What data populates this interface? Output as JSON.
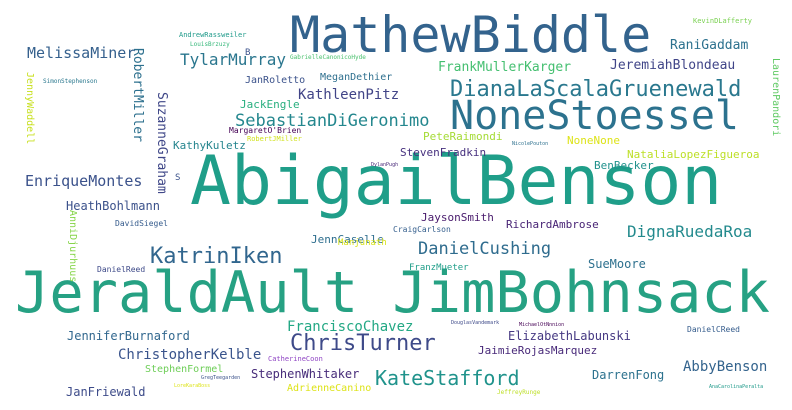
{
  "words": [
    {
      "text": "AbigailBenson",
      "color": "#1f9e89"
    },
    {
      "text": "JeraldAult JimBohnsack",
      "color": "#26a183"
    },
    {
      "text": "MathewBiddle",
      "color": "#33638d"
    },
    {
      "text": "NoneStoessel",
      "color": "#2c728e"
    },
    {
      "text": "DianaLaScalaGruenewald",
      "color": "#2a788e"
    },
    {
      "text": "KatrinIken",
      "color": "#31668e"
    },
    {
      "text": "ChrisTurner",
      "color": "#3e4a89"
    },
    {
      "text": "KateStafford",
      "color": "#20938c"
    },
    {
      "text": "SebastianDiGeronimo",
      "color": "#24878e"
    },
    {
      "text": "DanielCushing",
      "color": "#2f6c8e"
    },
    {
      "text": "DignaRuedaRoa",
      "color": "#238a8d"
    },
    {
      "text": "EnriqueMontes",
      "color": "#3b528b"
    },
    {
      "text": "TylarMurray",
      "color": "#2a768e"
    },
    {
      "text": "MelissaMiner",
      "color": "#35608d"
    },
    {
      "text": "KathleenPitz",
      "color": "#414487"
    },
    {
      "text": "FranciscoChavez",
      "color": "#22a884"
    },
    {
      "text": "ChristopherKelble",
      "color": "#3a548c"
    },
    {
      "text": "AbbyBenson",
      "color": "#33638d"
    },
    {
      "text": "RaniGaddam",
      "color": "#2c718e"
    },
    {
      "text": "JeremiahBlondeau",
      "color": "#404588"
    },
    {
      "text": "FrankMullerKarger",
      "color": "#44bf70"
    },
    {
      "text": "HeathBohlmann",
      "color": "#3b518b"
    },
    {
      "text": "RobertMiller",
      "color": "#2d708e"
    },
    {
      "text": "SuzanneGraham",
      "color": "#3f4788"
    },
    {
      "text": "JenniferBurnaford",
      "color": "#31678e"
    },
    {
      "text": "ElizabethLabunski",
      "color": "#453882"
    },
    {
      "text": "StephenWhitaker",
      "color": "#472c7a"
    },
    {
      "text": "JanFriewald",
      "color": "#3e4c8a"
    },
    {
      "text": "DarrenFong",
      "color": "#2c728e"
    },
    {
      "text": "SueMoore",
      "color": "#2d708e"
    },
    {
      "text": "JaimieRojasMarquez",
      "color": "#482979"
    },
    {
      "text": "StevenFradkin",
      "color": "#46307e"
    },
    {
      "text": "JaysonSmith",
      "color": "#481a6c"
    },
    {
      "text": "RichardAmbrose",
      "color": "#482475"
    },
    {
      "text": "JennCaselle",
      "color": "#2e6e8e"
    },
    {
      "text": "NataliaLopezFigueroa",
      "color": "#bddf26"
    },
    {
      "text": "BenBecker",
      "color": "#21918c"
    },
    {
      "text": "NoneNone",
      "color": "#dde318"
    },
    {
      "text": "PeteRaimondi",
      "color": "#a5db36"
    },
    {
      "text": "StephenFormel",
      "color": "#6ece58"
    },
    {
      "text": "AdrienneCanino",
      "color": "#dde318"
    },
    {
      "text": "KathyKuletz",
      "color": "#25858e"
    },
    {
      "text": "JackEngle",
      "color": "#29af7f"
    },
    {
      "text": "MeganDethier",
      "color": "#2e6f8e"
    },
    {
      "text": "JanRoletto",
      "color": "#3b528b"
    },
    {
      "text": "JennyWaddell",
      "color": "#c8e020"
    },
    {
      "text": "LaurenPandori",
      "color": "#5ec962"
    },
    {
      "text": "AnniDjurhuus",
      "color": "#86d549"
    },
    {
      "text": "FranzMueter",
      "color": "#1f9e89"
    },
    {
      "text": "Manjunath",
      "color": "#d8e219"
    },
    {
      "text": "CraigCarlson",
      "color": "#355f8d"
    },
    {
      "text": "DavidSiegel",
      "color": "#365c8d"
    },
    {
      "text": "DanielReed",
      "color": "#3e4a89"
    },
    {
      "text": "DanielCReed",
      "color": "#365d8d"
    },
    {
      "text": "MargaretO'Brien",
      "color": "#440154"
    },
    {
      "text": "RobertJMiller",
      "color": "#d0e11c"
    },
    {
      "text": "CatherineCoon",
      "color": "#8f44c4"
    },
    {
      "text": "AndrewRassweiler",
      "color": "#1f9a8a"
    },
    {
      "text": "LouisBrzuzy",
      "color": "#35b779"
    },
    {
      "text": "GabrielleCanonicoHyde",
      "color": "#4ac16d"
    },
    {
      "text": "SimonStephenson",
      "color": "#2a788e"
    },
    {
      "text": "KevinDLafferty",
      "color": "#7ad151"
    },
    {
      "text": "JeffreyRunge",
      "color": "#bddf26"
    },
    {
      "text": "AnaCarolinaPeralta",
      "color": "#1f9a8a"
    },
    {
      "text": "LoreKaraBoss",
      "color": "#dde318"
    },
    {
      "text": "GregTeegarden",
      "color": "#3b528b"
    },
    {
      "text": "DouglasVandemark",
      "color": "#3e4a89"
    },
    {
      "text": "MichaelOtNnnion",
      "color": "#440154"
    },
    {
      "text": "NicolePouton",
      "color": "#2d708e"
    },
    {
      "text": "DylanPugh",
      "color": "#482878"
    },
    {
      "text": "B",
      "color": "#3b528b"
    },
    {
      "text": "S",
      "color": "#3b528b"
    }
  ]
}
